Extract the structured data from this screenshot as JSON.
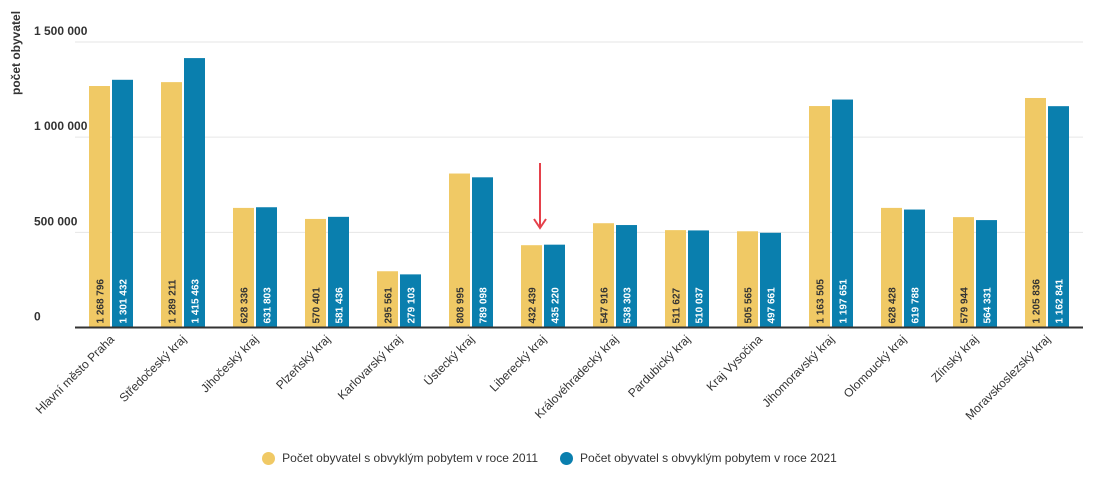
{
  "chart_data": {
    "type": "bar",
    "ylabel": "počet obyvatel",
    "ylim": [
      0,
      1500000
    ],
    "yticks": [
      {
        "value": 0,
        "label": "0"
      },
      {
        "value": 500000,
        "label": "500 000"
      },
      {
        "value": 1000000,
        "label": "1 000 000"
      },
      {
        "value": 1500000,
        "label": "1 500 000"
      }
    ],
    "grid": true,
    "legend_position": "bottom",
    "categories": [
      "Hlavní město Praha",
      "Středočeský kraj",
      "Jihočeský kraj",
      "Plzeňský kraj",
      "Karlovarský kraj",
      "Ústecký kraj",
      "Liberecký kraj",
      "Královéhradecký kraj",
      "Pardubický kraj",
      "Kraj Vysočina",
      "Jihomoravský kraj",
      "Olomoucký kraj",
      "Zlínský kraj",
      "Moravskoslezský kraj"
    ],
    "series": [
      {
        "name": "Počet obyvatel s obvyklým pobytem v roce 2011",
        "color": "#f0c965",
        "label_color": "#333333",
        "values": [
          1268796,
          1289211,
          628336,
          570401,
          295561,
          808995,
          432439,
          547916,
          511627,
          505565,
          1163505,
          628428,
          579944,
          1205836
        ],
        "labels": [
          "1 268 796",
          "1 289 211",
          "628 336",
          "570 401",
          "295 561",
          "808 995",
          "432 439",
          "547 916",
          "511 627",
          "505 565",
          "1 163 505",
          "628 428",
          "579 944",
          "1 205 836"
        ]
      },
      {
        "name": "Počet obyvatel s obvyklým pobytem v roce 2021",
        "color": "#0a7fae",
        "label_color": "#ffffff",
        "values": [
          1301432,
          1415463,
          631803,
          581436,
          279103,
          789098,
          435220,
          538303,
          510037,
          497661,
          1197651,
          619788,
          564331,
          1162841
        ],
        "labels": [
          "1 301 432",
          "1 415 463",
          "631 803",
          "581 436",
          "279 103",
          "789 098",
          "435 220",
          "538 303",
          "510 037",
          "497 661",
          "1 197 651",
          "619 788",
          "564 331",
          "1 162 841"
        ]
      }
    ],
    "annotation": {
      "type": "arrow",
      "category": "Liberecký kraj",
      "color": "#e5414b"
    }
  }
}
